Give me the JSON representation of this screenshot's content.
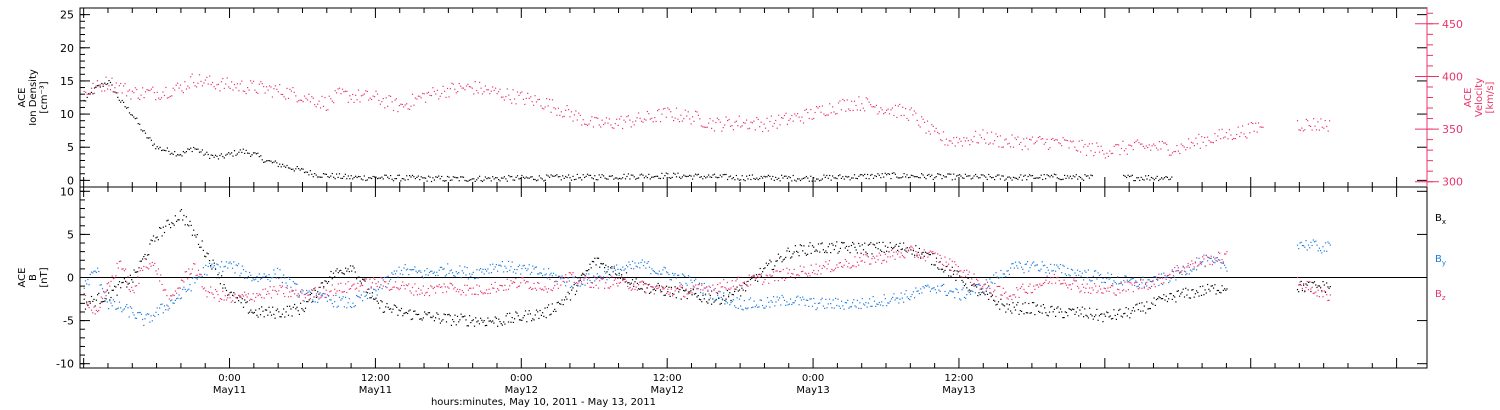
{
  "colors": {
    "black": "#000000",
    "blue": "#1e7be0",
    "red": "#e8356a"
  },
  "chart_data": [
    {
      "type": "scatter",
      "panel": "top",
      "y_left": {
        "label_lines": [
          "ACE",
          "Ion Density",
          "[cm⁻³]"
        ],
        "ylim": [
          -1,
          26
        ],
        "ticks": [
          0,
          5,
          10,
          15,
          20,
          25
        ]
      },
      "y_right": {
        "label_lines": [
          "ACE",
          "Velocity",
          "[km/s]"
        ],
        "ylim": [
          295,
          465
        ],
        "ticks": [
          300,
          350,
          400,
          450
        ]
      },
      "series": [
        {
          "axis": "left",
          "color": "black",
          "anchors": [
            [
              0,
              12
            ],
            [
              1,
              14
            ],
            [
              2,
              15
            ],
            [
              3,
              12
            ],
            [
              4,
              10
            ],
            [
              5,
              7
            ],
            [
              6,
              5
            ],
            [
              7,
              4.5
            ],
            [
              8,
              4
            ],
            [
              9,
              5
            ],
            [
              10,
              4
            ],
            [
              11,
              3.5
            ],
            [
              12,
              4
            ],
            [
              13,
              4.5
            ],
            [
              14,
              4
            ],
            [
              15,
              3
            ],
            [
              16,
              2.5
            ],
            [
              17,
              2
            ],
            [
              18,
              1.5
            ],
            [
              19,
              1
            ],
            [
              20,
              0.8
            ],
            [
              22,
              0.5
            ],
            [
              24,
              0.5
            ],
            [
              30,
              0.3
            ],
            [
              36,
              0.4
            ],
            [
              42,
              0.6
            ],
            [
              48,
              0.8
            ],
            [
              54,
              0.5
            ],
            [
              60,
              0.4
            ],
            [
              66,
              0.8
            ],
            [
              72,
              0.6
            ],
            [
              76,
              0.5
            ],
            [
              80,
              0.6
            ],
            [
              83,
              0.5
            ]
          ],
          "gaps": [
            [
              83.3,
              85.5
            ]
          ],
          "end": 89.5
        },
        {
          "axis": "right",
          "color": "red",
          "anchors": [
            [
              0,
              385
            ],
            [
              2,
              395
            ],
            [
              3,
              390
            ],
            [
              4,
              385
            ],
            [
              6,
              385
            ],
            [
              8,
              390
            ],
            [
              9,
              398
            ],
            [
              10,
              395
            ],
            [
              12,
              392
            ],
            [
              14,
              390
            ],
            [
              16,
              387
            ],
            [
              18,
              382
            ],
            [
              19,
              378
            ],
            [
              20,
              375
            ],
            [
              21,
              383
            ],
            [
              24,
              380
            ],
            [
              26,
              372
            ],
            [
              28,
              382
            ],
            [
              30,
              388
            ],
            [
              32,
              390
            ],
            [
              34,
              385
            ],
            [
              36,
              380
            ],
            [
              38,
              375
            ],
            [
              40,
              365
            ],
            [
              42,
              355
            ],
            [
              44,
              357
            ],
            [
              46,
              360
            ],
            [
              48,
              365
            ],
            [
              50,
              362
            ],
            [
              52,
              355
            ],
            [
              54,
              357
            ],
            [
              56,
              355
            ],
            [
              58,
              360
            ],
            [
              60,
              365
            ],
            [
              61,
              370
            ],
            [
              62,
              372
            ],
            [
              63,
              375
            ],
            [
              64,
              375
            ],
            [
              66,
              370
            ],
            [
              68,
              365
            ],
            [
              69,
              355
            ],
            [
              70,
              345
            ],
            [
              71,
              340
            ],
            [
              72,
              340
            ],
            [
              74,
              343
            ],
            [
              76,
              338
            ],
            [
              78,
              338
            ],
            [
              80,
              338
            ],
            [
              82,
              333
            ],
            [
              84,
              330
            ],
            [
              86,
              333
            ],
            [
              88,
              334
            ],
            [
              90,
              332
            ],
            [
              92,
              340
            ],
            [
              94,
              345
            ],
            [
              96,
              350
            ],
            [
              97,
              355
            ]
          ],
          "gaps": [
            [
              97.4,
              99.8
            ]
          ],
          "end": 102.5
        }
      ]
    },
    {
      "type": "scatter",
      "panel": "bottom",
      "y_left": {
        "label_lines": [
          "ACE",
          "B",
          "[nT]"
        ],
        "ylim": [
          -10.5,
          10.5
        ],
        "ticks": [
          -10,
          -5,
          0,
          5,
          10
        ]
      },
      "legend": [
        {
          "name": "B",
          "sub": "x",
          "color": "black"
        },
        {
          "name": "B",
          "sub": "y",
          "color": "blue"
        },
        {
          "name": "B",
          "sub": "z",
          "color": "red"
        }
      ],
      "series": [
        {
          "name": "Bx",
          "color": "black",
          "anchors": [
            [
              0,
              -3
            ],
            [
              2,
              -2
            ],
            [
              4,
              0
            ],
            [
              6,
              5
            ],
            [
              8,
              7.5
            ],
            [
              10,
              3
            ],
            [
              12,
              -2
            ],
            [
              14,
              -4
            ],
            [
              16,
              -4
            ],
            [
              18,
              -3.5
            ],
            [
              20,
              0
            ],
            [
              22,
              1.5
            ],
            [
              24,
              -3
            ],
            [
              26,
              -4
            ],
            [
              30,
              -4.8
            ],
            [
              34,
              -5
            ],
            [
              38,
              -4
            ],
            [
              40,
              -2
            ],
            [
              42,
              2
            ],
            [
              44,
              0.5
            ],
            [
              46,
              -1
            ],
            [
              48,
              -1.5
            ],
            [
              50,
              -2
            ],
            [
              52,
              -2.5
            ],
            [
              54,
              -1.5
            ],
            [
              56,
              1
            ],
            [
              58,
              3
            ],
            [
              60,
              3.5
            ],
            [
              64,
              3.5
            ],
            [
              68,
              3.5
            ],
            [
              70,
              2
            ],
            [
              72,
              0
            ],
            [
              74,
              -2
            ],
            [
              76,
              -3.5
            ],
            [
              78,
              -3.5
            ],
            [
              80,
              -4
            ],
            [
              82,
              -4
            ],
            [
              84,
              -4.5
            ],
            [
              86,
              -4
            ],
            [
              88,
              -3
            ],
            [
              90,
              -2
            ],
            [
              92,
              -1.5
            ],
            [
              94,
              -1
            ]
          ],
          "gaps": [
            [
              94.3,
              96
            ],
            [
              97.4,
              99.8
            ]
          ],
          "end": 102.5
        },
        {
          "name": "By",
          "color": "blue",
          "anchors": [
            [
              0,
              -1
            ],
            [
              1,
              1
            ],
            [
              2,
              -3
            ],
            [
              4,
              -4
            ],
            [
              5,
              -5
            ],
            [
              6,
              -4
            ],
            [
              8,
              -2
            ],
            [
              10,
              1
            ],
            [
              12,
              1.5
            ],
            [
              14,
              0
            ],
            [
              16,
              0.5
            ],
            [
              18,
              -2
            ],
            [
              20,
              -2.5
            ],
            [
              22,
              -3
            ],
            [
              24,
              -1.5
            ],
            [
              26,
              1
            ],
            [
              28,
              0.5
            ],
            [
              30,
              1
            ],
            [
              32,
              0.5
            ],
            [
              34,
              1.5
            ],
            [
              36,
              1
            ],
            [
              38,
              0.5
            ],
            [
              40,
              -0.5
            ],
            [
              42,
              0
            ],
            [
              44,
              1
            ],
            [
              46,
              1.5
            ],
            [
              48,
              0.5
            ],
            [
              50,
              -0.5
            ],
            [
              52,
              -2
            ],
            [
              54,
              -3
            ],
            [
              56,
              -3
            ],
            [
              58,
              -2.5
            ],
            [
              60,
              -3
            ],
            [
              62,
              -3
            ],
            [
              64,
              -3
            ],
            [
              66,
              -2.5
            ],
            [
              68,
              -2
            ],
            [
              70,
              -1
            ],
            [
              72,
              -2
            ],
            [
              74,
              -1
            ],
            [
              76,
              1
            ],
            [
              78,
              1.5
            ],
            [
              80,
              1
            ],
            [
              82,
              0.5
            ],
            [
              84,
              0
            ],
            [
              86,
              -0.5
            ],
            [
              88,
              -0.5
            ],
            [
              90,
              0.5
            ],
            [
              92,
              2
            ],
            [
              94,
              1.5
            ]
          ],
          "gaps": [
            [
              94.3,
              96
            ],
            [
              97.4,
              99.8
            ]
          ],
          "end": 102.5,
          "tail": [
            [
              96,
              0.5
            ],
            [
              98,
              2
            ],
            [
              100,
              4
            ],
            [
              102,
              3.5
            ]
          ]
        },
        {
          "name": "Bz",
          "color": "red",
          "anchors": [
            [
              0,
              -2
            ],
            [
              1,
              -4
            ],
            [
              2,
              -1
            ],
            [
              3,
              2
            ],
            [
              4,
              -2
            ],
            [
              5,
              2
            ],
            [
              6,
              1
            ],
            [
              7,
              -3
            ],
            [
              8,
              -0.5
            ],
            [
              9,
              1.5
            ],
            [
              10,
              -1.5
            ],
            [
              12,
              -2.5
            ],
            [
              14,
              -2
            ],
            [
              16,
              -1.5
            ],
            [
              18,
              -2
            ],
            [
              20,
              -1.5
            ],
            [
              22,
              -1
            ],
            [
              24,
              -0.5
            ],
            [
              26,
              -1
            ],
            [
              28,
              -1.5
            ],
            [
              30,
              -1
            ],
            [
              32,
              -1.5
            ],
            [
              34,
              -1
            ],
            [
              36,
              -0.5
            ],
            [
              38,
              -1
            ],
            [
              40,
              0
            ],
            [
              42,
              -0.5
            ],
            [
              44,
              -0.5
            ],
            [
              46,
              -1
            ],
            [
              48,
              -1.5
            ],
            [
              50,
              -1.5
            ],
            [
              52,
              -1
            ],
            [
              54,
              -0.5
            ],
            [
              56,
              0
            ],
            [
              58,
              0.5
            ],
            [
              60,
              1
            ],
            [
              62,
              1.5
            ],
            [
              64,
              2
            ],
            [
              66,
              2.5
            ],
            [
              68,
              3
            ],
            [
              70,
              2.5
            ],
            [
              72,
              1
            ],
            [
              74,
              -1
            ],
            [
              76,
              -2
            ],
            [
              78,
              -1
            ],
            [
              80,
              0
            ],
            [
              82,
              -1
            ],
            [
              84,
              -1.5
            ],
            [
              86,
              -1
            ],
            [
              88,
              -0.5
            ],
            [
              90,
              1
            ],
            [
              92,
              2
            ],
            [
              94,
              2.5
            ]
          ],
          "gaps": [
            [
              94.3,
              96
            ],
            [
              97.4,
              99.8
            ]
          ],
          "end": 102.5,
          "tail": [
            [
              96,
              1
            ],
            [
              98,
              -1
            ],
            [
              100,
              -0.5
            ],
            [
              102,
              -2
            ]
          ]
        }
      ]
    }
  ],
  "x_axis": {
    "range_hours": [
      -0.3,
      110.5
    ],
    "major_ticks": [
      {
        "hour": 12,
        "label": "0:00",
        "date": "May11"
      },
      {
        "hour": 24,
        "label": "12:00",
        "date": "May11"
      },
      {
        "hour": 36,
        "label": "0:00",
        "date": "May12"
      },
      {
        "hour": 48,
        "label": "12:00",
        "date": "May12"
      },
      {
        "hour": 60,
        "label": "0:00",
        "date": "May13"
      },
      {
        "hour": 72,
        "label": "12:00",
        "date": "May13"
      }
    ],
    "caption": "hours:minutes, May 10, 2011 - May 13, 2011"
  }
}
